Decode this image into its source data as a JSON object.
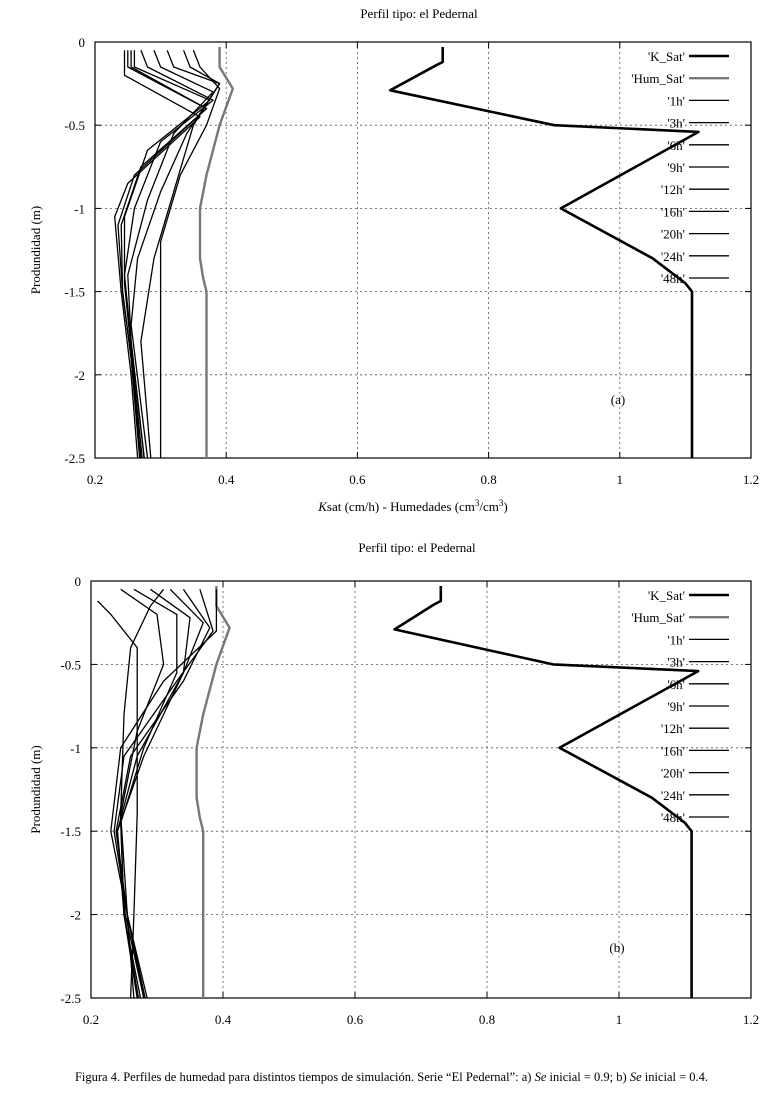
{
  "caption": {
    "prefix": "Figura 4. Perfiles de humedad para distintos tiempos de simulación. Serie “El Pedernal”: a) ",
    "se_a": "Se",
    "mid": " inicial = 0.9; b) ",
    "se_b": "Se",
    "suffix": " inicial = 0.4."
  },
  "chart_data": [
    {
      "type": "line",
      "panel_label": "(a)",
      "title": "Perfil tipo: el Pedernal",
      "xlabel_italic": "K",
      "xlabel_rest": "sat (cm/h) - Humedades (cm",
      "xlabel_sup1": "3",
      "xlabel_mid": "/cm",
      "xlabel_sup2": "3",
      "xlabel_end": ")",
      "ylabel": "Produndidad (m)",
      "xlim": [
        0.2,
        1.2
      ],
      "ylim": [
        -2.5,
        0
      ],
      "xticks": [
        0.2,
        0.4,
        0.6,
        0.8,
        1,
        1.2
      ],
      "xtick_labels": [
        "0.2",
        "0.4",
        "0.6",
        "0.8",
        "1",
        "1.2"
      ],
      "yticks": [
        0,
        -0.5,
        -1,
        -1.5,
        -2,
        -2.5
      ],
      "ytick_labels": [
        "0",
        "-0.5",
        "-1",
        "-1.5",
        "-2",
        "-2.5"
      ],
      "grid": true,
      "legend_position": "top-right",
      "series": [
        {
          "name": "'K_Sat'",
          "style": "thick",
          "color": "#000000",
          "x": [
            0.73,
            0.73,
            0.72,
            0.65,
            0.9,
            1.12,
            0.91,
            1.05,
            1.1,
            1.11,
            1.11
          ],
          "y": [
            -0.03,
            -0.12,
            -0.14,
            -0.29,
            -0.5,
            -0.54,
            -1.0,
            -1.3,
            -1.45,
            -1.5,
            -2.5
          ]
        },
        {
          "name": "'Hum_Sat'",
          "style": "gray",
          "color": "#777777",
          "x": [
            0.39,
            0.39,
            0.41,
            0.39,
            0.37,
            0.36,
            0.36,
            0.365,
            0.37,
            0.37
          ],
          "y": [
            -0.03,
            -0.15,
            -0.28,
            -0.5,
            -0.8,
            -1.0,
            -1.3,
            -1.42,
            -1.5,
            -2.5
          ]
        },
        {
          "name": "'1h'",
          "style": "thin",
          "color": "#000000",
          "x": [
            0.35,
            0.36,
            0.39,
            0.37,
            0.33,
            0.3,
            0.3,
            0.3
          ],
          "y": [
            -0.05,
            -0.15,
            -0.28,
            -0.5,
            -0.8,
            -1.2,
            -1.8,
            -2.5
          ]
        },
        {
          "name": "'3h'",
          "style": "thin",
          "color": "#000000",
          "x": [
            0.335,
            0.345,
            0.39,
            0.35,
            0.32,
            0.29,
            0.27,
            0.285
          ],
          "y": [
            -0.05,
            -0.15,
            -0.25,
            -0.5,
            -0.9,
            -1.3,
            -1.8,
            -2.5
          ]
        },
        {
          "name": "'6h'",
          "style": "thin",
          "color": "#000000",
          "x": [
            0.31,
            0.32,
            0.39,
            0.34,
            0.3,
            0.265,
            0.255,
            0.28
          ],
          "y": [
            -0.05,
            -0.15,
            -0.25,
            -0.55,
            -0.9,
            -1.3,
            -1.7,
            -2.5
          ]
        },
        {
          "name": "'9h'",
          "style": "thin",
          "color": "#000000",
          "x": [
            0.29,
            0.3,
            0.38,
            0.32,
            0.28,
            0.25,
            0.255,
            0.275
          ],
          "y": [
            -0.05,
            -0.15,
            -0.3,
            -0.55,
            -0.95,
            -1.4,
            -1.8,
            -2.5
          ]
        },
        {
          "name": "'12h'",
          "style": "thin",
          "color": "#000000",
          "x": [
            0.27,
            0.28,
            0.38,
            0.3,
            0.26,
            0.245,
            0.255,
            0.275
          ],
          "y": [
            -0.05,
            -0.15,
            -0.35,
            -0.6,
            -1.0,
            -1.4,
            -1.8,
            -2.5
          ]
        },
        {
          "name": "'16h'",
          "style": "thin",
          "color": "#000000",
          "x": [
            0.26,
            0.26,
            0.375,
            0.28,
            0.245,
            0.245,
            0.255,
            0.272
          ],
          "y": [
            -0.05,
            -0.15,
            -0.35,
            -0.65,
            -1.05,
            -1.45,
            -1.85,
            -2.5
          ]
        },
        {
          "name": "'20h'",
          "style": "thin",
          "color": "#000000",
          "x": [
            0.255,
            0.255,
            0.37,
            0.27,
            0.24,
            0.242,
            0.255,
            0.27
          ],
          "y": [
            -0.05,
            -0.15,
            -0.4,
            -0.75,
            -1.1,
            -1.5,
            -1.9,
            -2.5
          ]
        },
        {
          "name": "'24h'",
          "style": "thin",
          "color": "#000000",
          "x": [
            0.25,
            0.25,
            0.37,
            0.26,
            0.235,
            0.242,
            0.255,
            0.268
          ],
          "y": [
            -0.05,
            -0.15,
            -0.4,
            -0.8,
            -1.1,
            -1.5,
            -1.9,
            -2.5
          ]
        },
        {
          "name": "'48h'",
          "style": "thin",
          "color": "#000000",
          "x": [
            0.245,
            0.245,
            0.36,
            0.25,
            0.23,
            0.24,
            0.255,
            0.265
          ],
          "y": [
            -0.05,
            -0.2,
            -0.45,
            -0.85,
            -1.05,
            -1.5,
            -2.0,
            -2.5
          ]
        }
      ]
    },
    {
      "type": "line",
      "panel_label": "(b)",
      "title": "Perfil tipo: el Pedernal",
      "ylabel": "Produndidad (m)",
      "xlim": [
        0.2,
        1.2
      ],
      "ylim": [
        -2.5,
        0
      ],
      "xticks": [
        0.2,
        0.4,
        0.6,
        0.8,
        1,
        1.2
      ],
      "xtick_labels": [
        "0.2",
        "0.4",
        "0.6",
        "0.8",
        "1",
        "1.2"
      ],
      "yticks": [
        0,
        -0.5,
        -1,
        -1.5,
        -2,
        -2.5
      ],
      "ytick_labels": [
        "0",
        "-0.5",
        "-1",
        "-1.5",
        "-2",
        "-2.5"
      ],
      "grid": true,
      "legend_position": "top-right",
      "series": [
        {
          "name": "'K_Sat'",
          "style": "thick",
          "color": "#000000",
          "x": [
            0.73,
            0.73,
            0.72,
            0.66,
            0.9,
            1.12,
            0.91,
            1.05,
            1.1,
            1.11,
            1.11
          ],
          "y": [
            -0.03,
            -0.12,
            -0.14,
            -0.29,
            -0.5,
            -0.54,
            -1.0,
            -1.3,
            -1.45,
            -1.5,
            -2.5
          ]
        },
        {
          "name": "'Hum_Sat'",
          "style": "gray",
          "color": "#777777",
          "x": [
            0.39,
            0.39,
            0.41,
            0.39,
            0.37,
            0.36,
            0.36,
            0.365,
            0.37,
            0.37
          ],
          "y": [
            -0.03,
            -0.15,
            -0.28,
            -0.5,
            -0.8,
            -1.0,
            -1.3,
            -1.42,
            -1.5,
            -2.5
          ]
        },
        {
          "name": "'1h'",
          "style": "thin",
          "color": "#000000",
          "x": [
            0.21,
            0.23,
            0.27,
            0.27,
            0.27,
            0.265,
            0.26
          ],
          "y": [
            -0.12,
            -0.2,
            -0.4,
            -0.8,
            -1.4,
            -2.0,
            -2.5
          ]
        },
        {
          "name": "'3h'",
          "style": "thin",
          "color": "#000000",
          "x": [
            0.31,
            0.29,
            0.26,
            0.25,
            0.245,
            0.255,
            0.265
          ],
          "y": [
            -0.05,
            -0.15,
            -0.4,
            -0.8,
            -1.4,
            -2.0,
            -2.5
          ]
        },
        {
          "name": "'6h'",
          "style": "thin",
          "color": "#000000",
          "x": [
            0.245,
            0.3,
            0.31,
            0.27,
            0.245,
            0.25,
            0.27
          ],
          "y": [
            -0.05,
            -0.2,
            -0.5,
            -0.9,
            -1.4,
            -2.0,
            -2.5
          ]
        },
        {
          "name": "'9h'",
          "style": "thin",
          "color": "#000000",
          "x": [
            0.265,
            0.33,
            0.33,
            0.28,
            0.245,
            0.25,
            0.272
          ],
          "y": [
            -0.05,
            -0.2,
            -0.55,
            -1.0,
            -1.45,
            -2.0,
            -2.5
          ]
        },
        {
          "name": "'12h'",
          "style": "thin",
          "color": "#000000",
          "x": [
            0.29,
            0.35,
            0.34,
            0.28,
            0.24,
            0.25,
            0.275
          ],
          "y": [
            -0.05,
            -0.22,
            -0.55,
            -1.05,
            -1.5,
            -2.0,
            -2.5
          ]
        },
        {
          "name": "'16h'",
          "style": "thin",
          "color": "#000000",
          "x": [
            0.32,
            0.37,
            0.34,
            0.27,
            0.24,
            0.252,
            0.28
          ],
          "y": [
            -0.05,
            -0.25,
            -0.55,
            -1.05,
            -1.5,
            -2.0,
            -2.5
          ]
        },
        {
          "name": "'20h'",
          "style": "thin",
          "color": "#000000",
          "x": [
            0.34,
            0.38,
            0.34,
            0.26,
            0.238,
            0.255,
            0.28
          ],
          "y": [
            -0.05,
            -0.28,
            -0.6,
            -1.05,
            -1.5,
            -2.0,
            -2.5
          ]
        },
        {
          "name": "'24h'",
          "style": "thin",
          "color": "#000000",
          "x": [
            0.365,
            0.385,
            0.33,
            0.25,
            0.235,
            0.255,
            0.282
          ],
          "y": [
            -0.05,
            -0.3,
            -0.6,
            -1.05,
            -1.5,
            -2.0,
            -2.5
          ]
        },
        {
          "name": "'48h'",
          "style": "thin",
          "color": "#000000",
          "x": [
            0.39,
            0.39,
            0.31,
            0.245,
            0.23,
            0.255,
            0.285
          ],
          "y": [
            -0.05,
            -0.3,
            -0.6,
            -1.0,
            -1.5,
            -2.0,
            -2.5
          ]
        }
      ]
    }
  ]
}
